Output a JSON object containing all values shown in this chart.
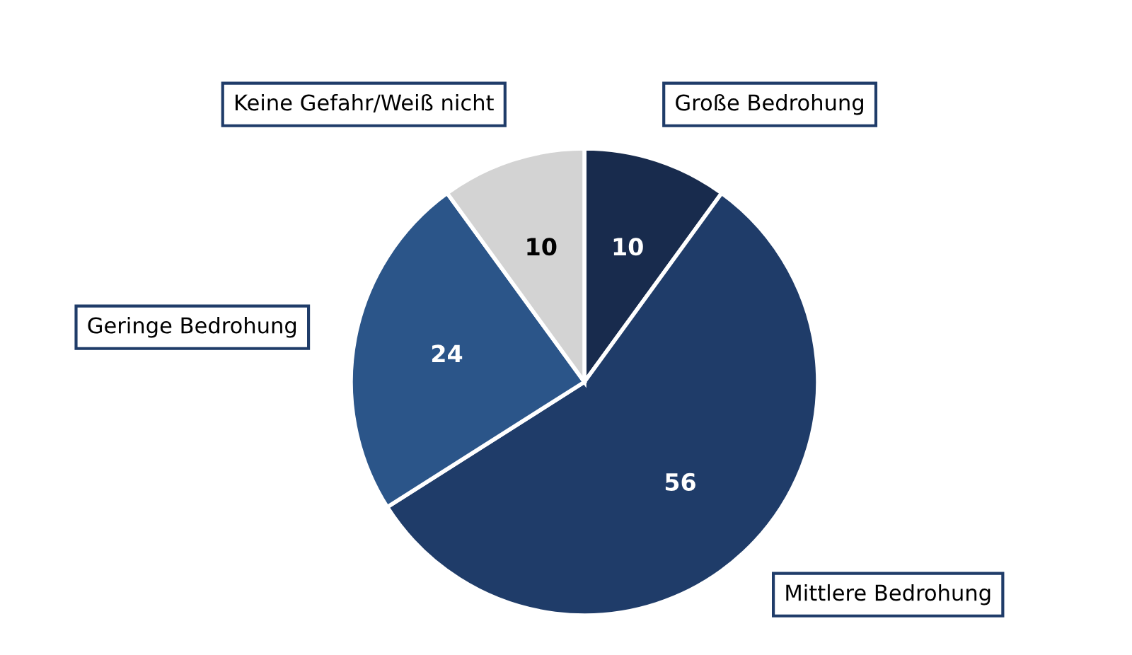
{
  "chart_data": {
    "type": "pie",
    "categories": [
      "Große Bedrohung",
      "Mittlere Bedrohung",
      "Geringe Bedrohung",
      "Keine Gefahr/Weiß nicht"
    ],
    "values": [
      10,
      56,
      24,
      10
    ],
    "colors": [
      "#182b4d",
      "#1f3c69",
      "#2b5589",
      "#d3d3d3"
    ],
    "data_labels": true,
    "legend": false
  }
}
